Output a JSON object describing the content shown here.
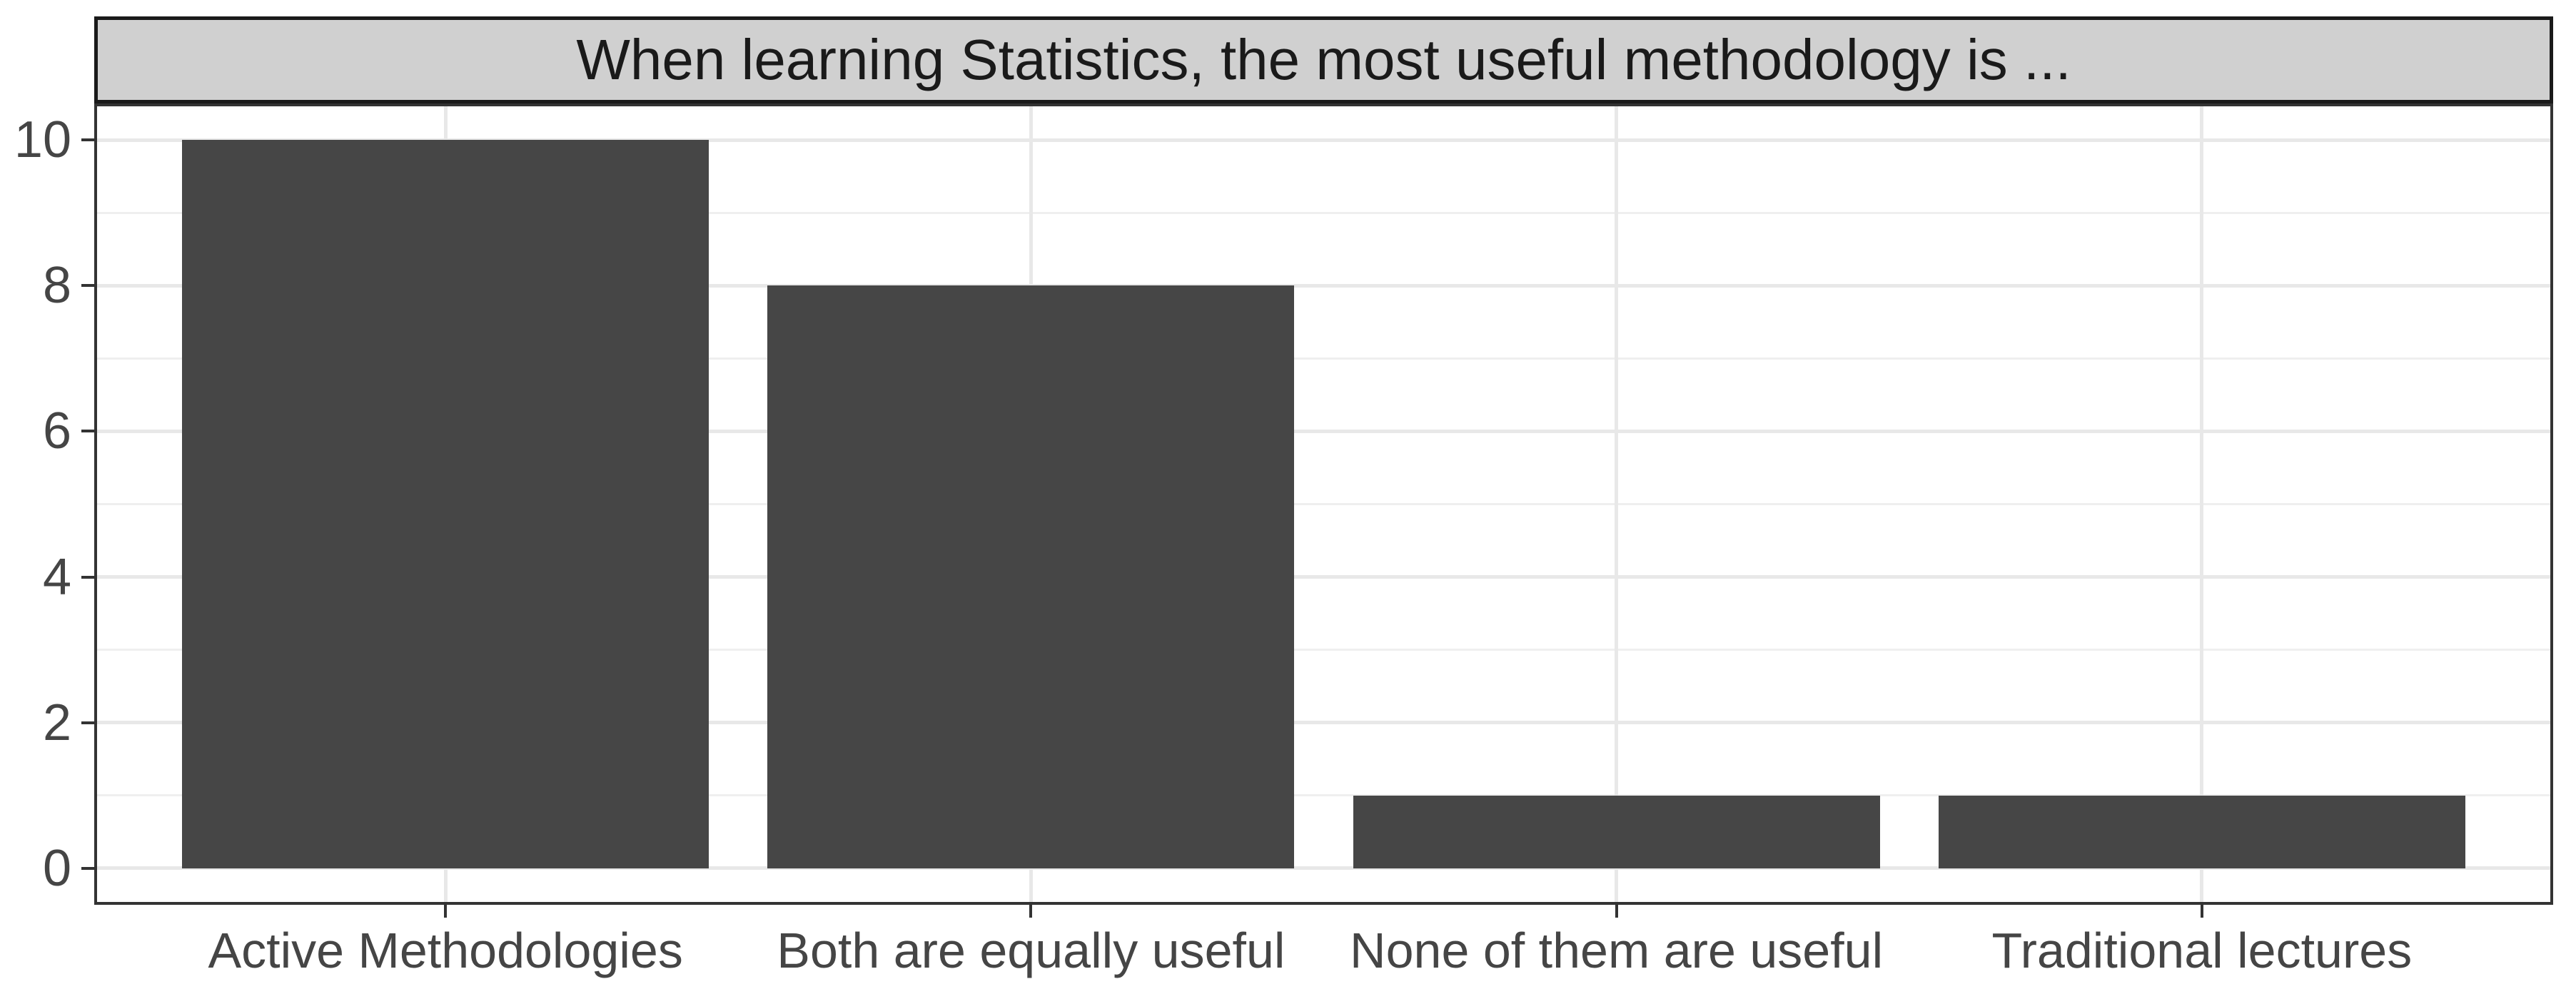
{
  "chart_data": {
    "type": "bar",
    "title": "When learning Statistics, the most useful methodology is ...",
    "categories": [
      "Active Methodologies",
      "Both are equally useful",
      "None of them are useful",
      "Traditional lectures"
    ],
    "values": [
      10,
      8,
      1,
      1
    ],
    "xlabel": "",
    "ylabel": "",
    "ylim": [
      0,
      10
    ],
    "yticks_major": [
      0,
      2,
      4,
      6,
      8,
      10
    ],
    "yticks_minor": [
      1,
      3,
      5,
      7,
      9
    ],
    "grid": "major-and-minor",
    "legend": "none",
    "bar_width_fraction": 0.9,
    "colors": {
      "bar_fill": "#464646",
      "strip_background": "#d0d0d0",
      "strip_border": "#1a1a1a",
      "panel_border": "#333333",
      "grid_major": "#e8e8e8",
      "grid_minor": "#efefef",
      "axis_text": "#454545",
      "title_text": "#1a1a1a",
      "background": "#ffffff"
    }
  }
}
